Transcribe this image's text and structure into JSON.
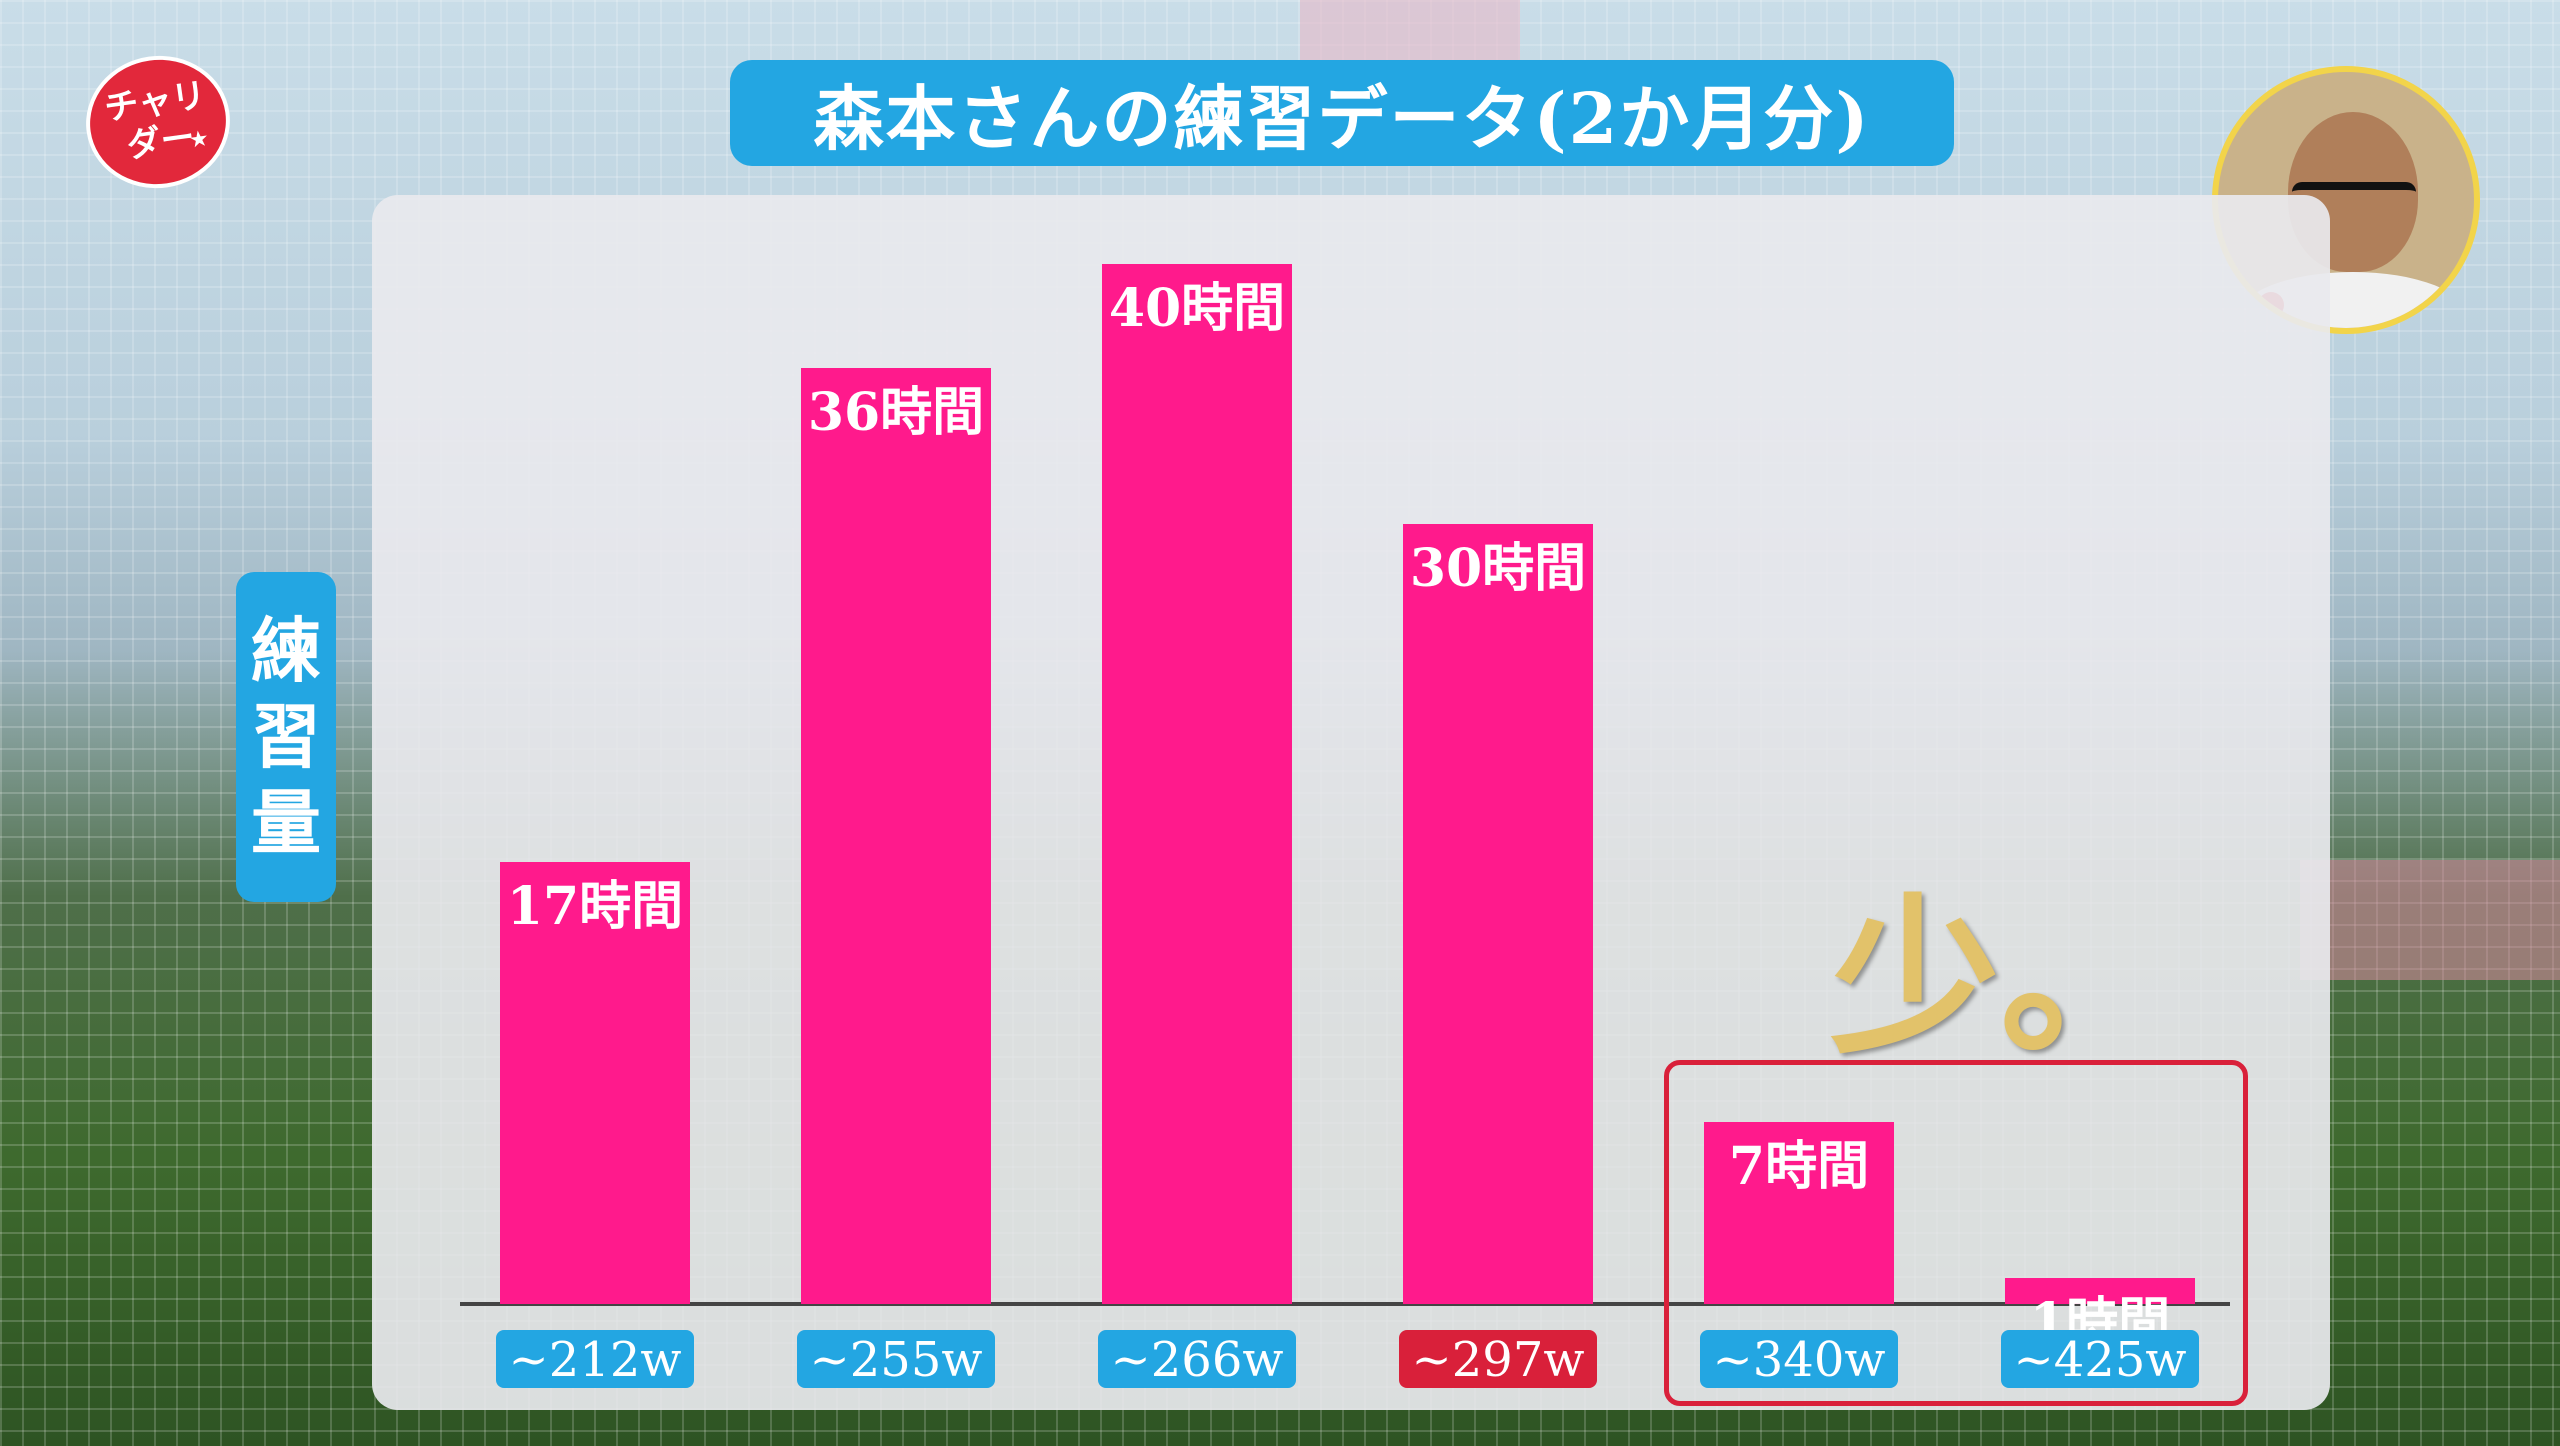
{
  "logo": {
    "line1": "チャリ",
    "line2": "ダー",
    "star": "★"
  },
  "title": "森本さんの練習データ(2か月分)",
  "y_axis_label": [
    "練",
    "習",
    "量"
  ],
  "emphasis_text": "少。",
  "colors": {
    "bar": "#ff1a8c",
    "tag_blue": "#23a6e2",
    "tag_red": "#d9203a",
    "highlight": "#d9203a",
    "emphasis": "#e2c26a"
  },
  "chart_data": {
    "type": "bar",
    "title": "森本さんの練習データ(2か月分)",
    "ylabel": "練習量",
    "xlabel": "",
    "categories": [
      "~212w",
      "~255w",
      "~266w",
      "~297w",
      "~340w",
      "~425w"
    ],
    "values": [
      17,
      36,
      40,
      30,
      7,
      1
    ],
    "value_labels": [
      "17時間",
      "36時間",
      "40時間",
      "30時間",
      "7時間",
      "1時間"
    ],
    "category_tag_colors": [
      "blue",
      "blue",
      "blue",
      "red",
      "blue",
      "blue"
    ],
    "ylim": [
      0,
      42
    ],
    "grid": false,
    "annotations": [
      {
        "text": "少。",
        "target_categories": [
          "~340w",
          "~425w"
        ]
      }
    ]
  }
}
